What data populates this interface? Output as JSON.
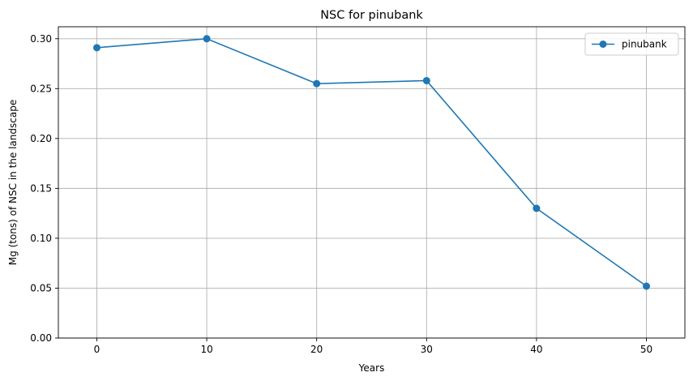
{
  "chart_data": {
    "type": "line",
    "title": "NSC for pinubank",
    "xlabel": "Years",
    "ylabel": "Mg (tons) of NSC in the landscape",
    "x": [
      0,
      10,
      20,
      30,
      40,
      50
    ],
    "series": [
      {
        "name": "pinubank",
        "values": [
          0.291,
          0.3,
          0.255,
          0.258,
          0.13,
          0.052
        ],
        "color": "#1f77b4",
        "marker": "circle"
      }
    ],
    "xlim": [
      -3.5,
      53.5
    ],
    "ylim": [
      0,
      0.312
    ],
    "xticks": [
      0,
      10,
      20,
      30,
      40,
      50
    ],
    "xtick_labels": [
      "0",
      "10",
      "20",
      "30",
      "40",
      "50"
    ],
    "yticks": [
      0,
      0.05,
      0.1,
      0.15,
      0.2,
      0.25,
      0.3
    ],
    "ytick_labels": [
      "0.00",
      "0.05",
      "0.10",
      "0.15",
      "0.20",
      "0.25",
      "0.30"
    ],
    "grid": true,
    "legend_position": "top-right"
  }
}
